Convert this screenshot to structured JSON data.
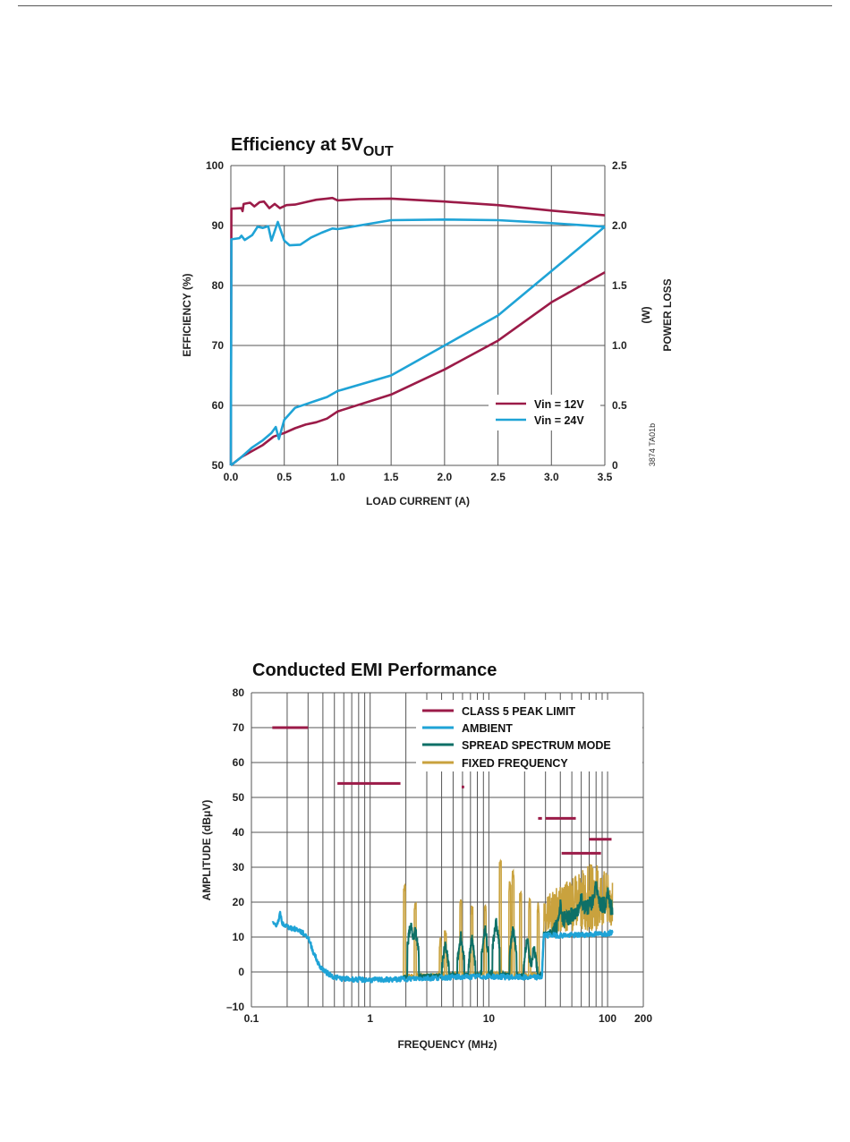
{
  "colors": {
    "vin12": "#9b1b48",
    "vin24": "#1fa3d6",
    "limit": "#9b1b48",
    "ambient": "#1fa3d6",
    "spread": "#0e7067",
    "fixed": "#c9a23e",
    "grid": "#555555"
  },
  "chart_data": [
    {
      "type": "line",
      "title": "Efficiency at 5V",
      "title_subscript": "OUT",
      "xlabel": "LOAD CURRENT (A)",
      "ylabel": "EFFICIENCY (%)",
      "y2label_line1": "(W)",
      "y2label_line2": "POWER LOSS",
      "side_note": "3874 TA01b",
      "xlim": [
        0,
        3.5
      ],
      "ylim": [
        50,
        100
      ],
      "y2lim": [
        0,
        2.5
      ],
      "grid": true,
      "legend_position": "bottom-right",
      "x_ticks": [
        "0.0",
        "0.5",
        "1.0",
        "1.5",
        "2.0",
        "2.5",
        "3.0",
        "3.5"
      ],
      "y_ticks": [
        "50",
        "60",
        "70",
        "80",
        "90",
        "100"
      ],
      "y2_ticks": [
        "0",
        "0.5",
        "1.0",
        "1.5",
        "2.0",
        "2.5"
      ],
      "legend": [
        "Vin = 12V",
        "Vin = 24V"
      ],
      "series": [
        {
          "name": "Vin = 12V",
          "axis": "left",
          "color_key": "vin12",
          "points": [
            [
              0.0,
              50
            ],
            [
              0.005,
              92.8
            ],
            [
              0.1,
              92.9
            ],
            [
              0.11,
              92.4
            ],
            [
              0.12,
              93.6
            ],
            [
              0.18,
              93.8
            ],
            [
              0.22,
              93.2
            ],
            [
              0.27,
              93.9
            ],
            [
              0.31,
              94.0
            ],
            [
              0.36,
              92.9
            ],
            [
              0.41,
              93.6
            ],
            [
              0.46,
              92.9
            ],
            [
              0.52,
              93.4
            ],
            [
              0.6,
              93.5
            ],
            [
              0.7,
              93.9
            ],
            [
              0.8,
              94.3
            ],
            [
              0.9,
              94.5
            ],
            [
              0.95,
              94.6
            ],
            [
              1.0,
              94.2
            ],
            [
              1.2,
              94.4
            ],
            [
              1.5,
              94.5
            ],
            [
              2.0,
              94.0
            ],
            [
              2.5,
              93.4
            ],
            [
              3.0,
              92.5
            ],
            [
              3.5,
              91.7
            ]
          ]
        },
        {
          "name": "Vin = 24V",
          "axis": "left",
          "color_key": "vin24",
          "points": [
            [
              0.0,
              50
            ],
            [
              0.005,
              87.7
            ],
            [
              0.08,
              87.9
            ],
            [
              0.1,
              88.3
            ],
            [
              0.13,
              87.6
            ],
            [
              0.2,
              88.4
            ],
            [
              0.25,
              89.8
            ],
            [
              0.3,
              89.6
            ],
            [
              0.35,
              89.9
            ],
            [
              0.38,
              87.5
            ],
            [
              0.44,
              90.6
            ],
            [
              0.5,
              87.5
            ],
            [
              0.55,
              86.7
            ],
            [
              0.65,
              86.8
            ],
            [
              0.75,
              88.0
            ],
            [
              0.85,
              88.8
            ],
            [
              0.95,
              89.5
            ],
            [
              1.0,
              89.4
            ],
            [
              1.2,
              90.0
            ],
            [
              1.5,
              90.9
            ],
            [
              2.0,
              91.0
            ],
            [
              2.5,
              90.9
            ],
            [
              3.0,
              90.4
            ],
            [
              3.5,
              89.8
            ]
          ]
        },
        {
          "name": "Vin = 12V",
          "axis": "right",
          "color_key": "vin12",
          "points": [
            [
              0.0,
              0.0
            ],
            [
              0.1,
              0.07
            ],
            [
              0.2,
              0.12
            ],
            [
              0.3,
              0.17
            ],
            [
              0.4,
              0.24
            ],
            [
              0.5,
              0.27
            ],
            [
              0.6,
              0.31
            ],
            [
              0.7,
              0.34
            ],
            [
              0.8,
              0.36
            ],
            [
              0.9,
              0.39
            ],
            [
              1.0,
              0.45
            ],
            [
              1.5,
              0.59
            ],
            [
              2.0,
              0.8
            ],
            [
              2.5,
              1.04
            ],
            [
              3.0,
              1.36
            ],
            [
              3.5,
              1.61
            ]
          ]
        },
        {
          "name": "Vin = 24V",
          "axis": "right",
          "color_key": "vin24",
          "points": [
            [
              0.0,
              0.0
            ],
            [
              0.1,
              0.07
            ],
            [
              0.2,
              0.15
            ],
            [
              0.3,
              0.21
            ],
            [
              0.38,
              0.27
            ],
            [
              0.42,
              0.32
            ],
            [
              0.45,
              0.22
            ],
            [
              0.5,
              0.38
            ],
            [
              0.6,
              0.48
            ],
            [
              0.7,
              0.51
            ],
            [
              0.8,
              0.54
            ],
            [
              0.9,
              0.57
            ],
            [
              1.0,
              0.62
            ],
            [
              1.5,
              0.75
            ],
            [
              2.0,
              1.0
            ],
            [
              2.5,
              1.25
            ],
            [
              3.0,
              1.62
            ],
            [
              3.5,
              1.99
            ]
          ]
        }
      ]
    },
    {
      "type": "line",
      "title": "Conducted EMI Performance",
      "xlabel": "FREQUENCY (MHz)",
      "ylabel": "AMPLITUDE (dBμV)",
      "x_scale": "log",
      "xlim": [
        0.1,
        200
      ],
      "ylim": [
        -10,
        80
      ],
      "grid": true,
      "legend_position": "top-right",
      "x_ticks": [
        {
          "value": 0.1,
          "label": "0.1"
        },
        {
          "value": 1,
          "label": "1"
        },
        {
          "value": 10,
          "label": "10"
        },
        {
          "value": 100,
          "label": "100"
        },
        {
          "value": 200,
          "label": "200"
        }
      ],
      "y_ticks": [
        "–10",
        "0",
        "10",
        "20",
        "30",
        "40",
        "50",
        "60",
        "70",
        "80"
      ],
      "legend": [
        "CLASS 5 PEAK LIMIT",
        "AMBIENT",
        "SPREAD SPECTRUM MODE",
        "FIXED FREQUENCY"
      ],
      "limit_segments": [
        {
          "x1": 0.15,
          "x2": 0.3,
          "y": 70
        },
        {
          "x1": 0.53,
          "x2": 1.8,
          "y": 54
        },
        {
          "x1": 5.9,
          "x2": 6.2,
          "y": 53
        },
        {
          "x1": 26,
          "x2": 28,
          "y": 44
        },
        {
          "x1": 30,
          "x2": 54,
          "y": 44
        },
        {
          "x1": 41,
          "x2": 88,
          "y": 34
        },
        {
          "x1": 70,
          "x2": 108,
          "y": 38
        }
      ],
      "ambient": [
        [
          0.15,
          14
        ],
        [
          0.16,
          13.5
        ],
        [
          0.17,
          14.5
        ],
        [
          0.175,
          17
        ],
        [
          0.18,
          14
        ],
        [
          0.2,
          13
        ],
        [
          0.22,
          12.5
        ],
        [
          0.25,
          12
        ],
        [
          0.3,
          10
        ],
        [
          0.33,
          6
        ],
        [
          0.37,
          2
        ],
        [
          0.42,
          0
        ],
        [
          0.5,
          -1.5
        ],
        [
          0.6,
          -2
        ],
        [
          0.8,
          -2.2
        ],
        [
          1.0,
          -2.3
        ],
        [
          1.5,
          -2.2
        ],
        [
          2,
          -2
        ],
        [
          5,
          -1.5
        ],
        [
          10,
          -1.3
        ],
        [
          20,
          -1.6
        ],
        [
          28,
          -1.5
        ],
        [
          29,
          10.5
        ],
        [
          50,
          10.5
        ],
        [
          100,
          11
        ],
        [
          110,
          11.5
        ]
      ],
      "spread_peaks": [
        [
          2.2,
          16
        ],
        [
          2.4,
          14
        ],
        [
          4.3,
          10
        ],
        [
          5.8,
          12
        ],
        [
          7.2,
          11
        ],
        [
          9.3,
          14
        ],
        [
          11.5,
          16
        ],
        [
          16,
          14
        ],
        [
          21,
          11
        ],
        [
          24,
          9
        ],
        [
          40,
          21
        ],
        [
          60,
          24
        ],
        [
          80,
          27
        ],
        [
          100,
          25
        ]
      ],
      "fixed_peaks": [
        [
          1.95,
          25
        ],
        [
          2.4,
          20
        ],
        [
          3.9,
          10
        ],
        [
          4.3,
          12
        ],
        [
          5.8,
          21
        ],
        [
          7.2,
          19
        ],
        [
          9.3,
          19
        ],
        [
          12.5,
          32
        ],
        [
          15,
          26
        ],
        [
          16,
          29
        ],
        [
          18.5,
          23
        ],
        [
          22,
          21
        ],
        [
          26,
          20
        ],
        [
          30,
          21
        ],
        [
          40,
          24
        ],
        [
          55,
          27
        ],
        [
          70,
          30
        ],
        [
          80,
          31
        ],
        [
          100,
          27
        ]
      ]
    }
  ]
}
